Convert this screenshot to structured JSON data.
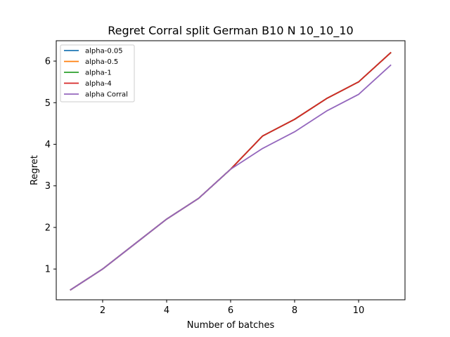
{
  "chart_data": {
    "type": "line",
    "title": "Regret Corral split German B10 N 10_10_10",
    "xlabel": "Number of batches",
    "ylabel": "Regret",
    "xlim": [
      0.55,
      11.45
    ],
    "ylim": [
      0.26,
      6.49
    ],
    "xticks": [
      2,
      4,
      6,
      8,
      10
    ],
    "yticks": [
      1,
      2,
      3,
      4,
      5,
      6
    ],
    "grid": false,
    "legend_position": "upper-left",
    "x": [
      1,
      2,
      3,
      4,
      5,
      6,
      7,
      8,
      9,
      10,
      11
    ],
    "series": [
      {
        "name": "alpha-0.05",
        "color": "#1f77b4",
        "values": [
          0.5,
          1.0,
          1.6,
          2.2,
          2.7,
          3.4,
          4.2,
          4.6,
          5.1,
          5.5,
          6.2
        ]
      },
      {
        "name": "alpha-0.5",
        "color": "#ff7f0e",
        "values": [
          0.5,
          1.0,
          1.6,
          2.2,
          2.7,
          3.4,
          4.2,
          4.6,
          5.1,
          5.5,
          6.2
        ]
      },
      {
        "name": "alpha-1",
        "color": "#2ca02c",
        "values": [
          0.5,
          1.0,
          1.6,
          2.2,
          2.7,
          3.4,
          4.2,
          4.6,
          5.1,
          5.5,
          6.2
        ]
      },
      {
        "name": "alpha-4",
        "color": "#d62728",
        "values": [
          0.5,
          1.0,
          1.6,
          2.2,
          2.7,
          3.4,
          4.2,
          4.6,
          5.1,
          5.5,
          6.2
        ]
      },
      {
        "name": "alpha Corral",
        "color": "#9467bd",
        "values": [
          0.5,
          1.0,
          1.6,
          2.2,
          2.7,
          3.4,
          3.9,
          4.3,
          4.8,
          5.2,
          5.9
        ]
      }
    ]
  }
}
